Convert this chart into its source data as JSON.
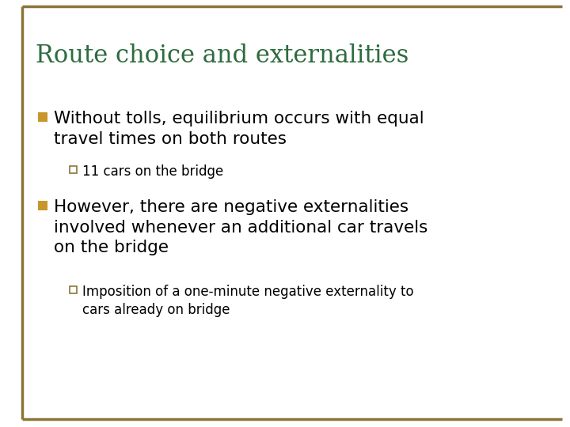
{
  "title": "Route choice and externalities",
  "title_color": "#2E6B3E",
  "title_fontsize": 22,
  "background_color": "#FFFFFF",
  "border_color": "#8B7536",
  "bullet_color": "#C8972A",
  "sub_bullet_color": "#8B7536",
  "text_color": "#000000",
  "bullet1_line1": "Without tolls, equilibrium occurs with equal",
  "bullet1_line2": "travel times on both routes",
  "sub1_text": "11 cars on the bridge",
  "bullet2_line1": "However, there are negative externalities",
  "bullet2_line2": "involved whenever an additional car travels",
  "bullet2_line3": "on the bridge",
  "sub2_line1": "Imposition of a one-minute negative externality to",
  "sub2_line2": "cars already on bridge",
  "bullet_fontsize": 15.5,
  "sub_bullet_fontsize": 12
}
